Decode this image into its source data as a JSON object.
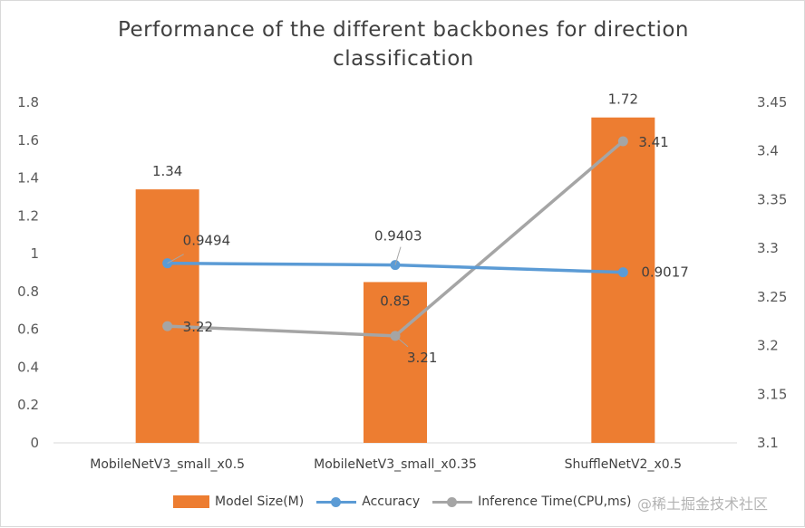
{
  "chart_data": {
    "type": "bar+line",
    "title": "Performance of the different backbones for direction classification",
    "title_lines": [
      "Performance of the different backbones for direction",
      "classification"
    ],
    "categories": [
      "MobileNetV3_small_x0.5",
      "MobileNetV3_small_x0.35",
      "ShuffleNetV2_x0.5"
    ],
    "series": [
      {
        "name": "Model Size(M)",
        "type": "bar",
        "axis": "left",
        "color": "#ed7d31",
        "values": [
          1.34,
          0.85,
          1.72
        ]
      },
      {
        "name": "Accuracy",
        "type": "line",
        "axis": "left",
        "color": "#5b9bd5",
        "values": [
          0.9494,
          0.9403,
          0.9017
        ]
      },
      {
        "name": "Inference Time(CPU,ms)",
        "type": "line",
        "axis": "right",
        "color": "#a5a5a5",
        "values": [
          3.22,
          3.21,
          3.41
        ]
      }
    ],
    "data_labels": {
      "bars": [
        "1.34",
        "0.85",
        "1.72"
      ],
      "accuracy": [
        "0.9494",
        "0.9403",
        "0.9017"
      ],
      "inference": [
        "3.22",
        "3.21",
        "3.41"
      ]
    },
    "y_left": {
      "min": 0,
      "max": 1.8,
      "step": 0.2,
      "ticks": [
        "0",
        "0.2",
        "0.4",
        "0.6",
        "0.8",
        "1",
        "1.2",
        "1.4",
        "1.6",
        "1.8"
      ]
    },
    "y_right": {
      "min": 3.1,
      "max": 3.45,
      "step": 0.05,
      "ticks": [
        "3.1",
        "3.15",
        "3.2",
        "3.25",
        "3.3",
        "3.35",
        "3.4",
        "3.45"
      ]
    },
    "grid": false,
    "legend_position": "bottom"
  },
  "legend": {
    "model_size": "Model Size(M)",
    "accuracy": "Accuracy",
    "inference": "Inference Time(CPU,ms)"
  },
  "watermark": "@稀土掘金技术社区"
}
